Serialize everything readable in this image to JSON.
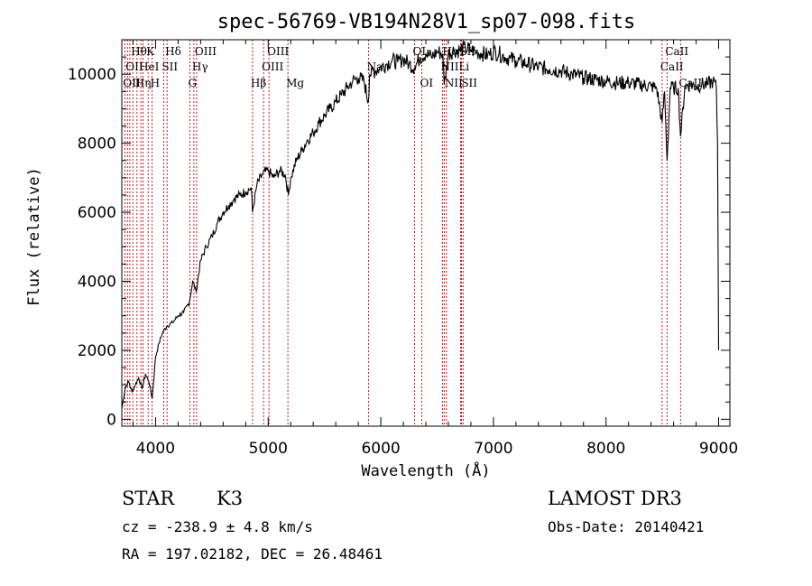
{
  "chart_data": {
    "type": "line",
    "title": "spec-56769-VB194N28V1_sp07-098.fits",
    "xlabel": "Wavelength (Å)",
    "ylabel": "Flux (relative)",
    "xlim": [
      3700,
      9100
    ],
    "ylim": [
      -200,
      11000
    ],
    "x_ticks": [
      4000,
      5000,
      6000,
      7000,
      8000,
      9000
    ],
    "y_ticks": [
      0,
      2000,
      4000,
      6000,
      8000,
      10000
    ],
    "x_tick_labels": [
      "4000",
      "5000",
      "6000",
      "7000",
      "8000",
      "9000"
    ],
    "y_tick_labels": [
      "0",
      "2000",
      "4000",
      "6000",
      "8000",
      "10000"
    ],
    "line_color": "#000000",
    "marker_color": "#c00000",
    "series": [
      {
        "x": [
          3700,
          3730,
          3760,
          3790,
          3820,
          3850,
          3880,
          3910,
          3940,
          3970,
          4000,
          4030,
          4060,
          4100,
          4150,
          4200,
          4250,
          4300,
          4330,
          4360,
          4400,
          4450,
          4500,
          4550,
          4600,
          4650,
          4700,
          4750,
          4800,
          4850,
          4860,
          4900,
          4950,
          5000,
          5050,
          5100,
          5150,
          5180,
          5200,
          5250,
          5300,
          5350,
          5400,
          5450,
          5500,
          5550,
          5600,
          5650,
          5700,
          5750,
          5800,
          5850,
          5890,
          5900,
          5950,
          6000,
          6050,
          6100,
          6150,
          6200,
          6250,
          6300,
          6350,
          6400,
          6450,
          6500,
          6550,
          6563,
          6600,
          6650,
          6700,
          6750,
          6800,
          6850,
          6900,
          6950,
          7000,
          7050,
          7100,
          7150,
          7200,
          7300,
          7400,
          7500,
          7600,
          7700,
          7800,
          7900,
          8000,
          8100,
          8200,
          8300,
          8400,
          8450,
          8498,
          8520,
          8542,
          8570,
          8600,
          8640,
          8662,
          8700,
          8750,
          8800,
          8850,
          8900,
          8950,
          8980,
          8990,
          9000
        ],
        "y": [
          300,
          900,
          1100,
          800,
          1000,
          1200,
          900,
          1300,
          1100,
          600,
          1800,
          2200,
          2500,
          2700,
          2800,
          3000,
          3100,
          3400,
          4000,
          3700,
          4600,
          5000,
          5300,
          5700,
          6000,
          6200,
          6400,
          6500,
          6600,
          6700,
          6000,
          6800,
          7100,
          7200,
          7000,
          7200,
          7100,
          6500,
          7000,
          7500,
          7800,
          8100,
          8300,
          8600,
          8800,
          9000,
          9200,
          9400,
          9600,
          9800,
          9900,
          9800,
          9200,
          10000,
          10100,
          10200,
          10300,
          10400,
          10350,
          10450,
          10300,
          10200,
          10500,
          10600,
          10500,
          10650,
          10600,
          9700,
          10600,
          10700,
          10700,
          10750,
          10700,
          10650,
          10600,
          10550,
          10650,
          10600,
          10500,
          10450,
          10400,
          10300,
          10200,
          10150,
          10100,
          10000,
          9900,
          9850,
          9800,
          9750,
          9750,
          9700,
          9650,
          9600,
          8600,
          9500,
          7500,
          9600,
          9600,
          9600,
          8200,
          9650,
          9700,
          9650,
          9700,
          9700,
          9800,
          9600,
          8000,
          2000
        ]
      }
    ],
    "line_markers": [
      {
        "x": 3727,
        "labels": [
          "OII"
        ],
        "row": 2
      },
      {
        "x": 3750,
        "labels": [
          "OII"
        ],
        "row": 1
      },
      {
        "x": 3771,
        "labels": [],
        "row": 0
      },
      {
        "x": 3798,
        "labels": [
          "Hθ"
        ],
        "row": 0
      },
      {
        "x": 3835,
        "labels": [
          "Hη"
        ],
        "row": 2
      },
      {
        "x": 3869,
        "labels": [
          "HeI"
        ],
        "row": 1
      },
      {
        "x": 3889,
        "labels": [],
        "row": 0
      },
      {
        "x": 3934,
        "labels": [
          "K"
        ],
        "row": 0
      },
      {
        "x": 3969,
        "labels": [
          "H"
        ],
        "row": 2
      },
      {
        "x": 4072,
        "labels": [
          "SII"
        ],
        "row": 1
      },
      {
        "x": 4102,
        "labels": [
          "Hδ"
        ],
        "row": 0
      },
      {
        "x": 4305,
        "labels": [
          "G"
        ],
        "row": 2
      },
      {
        "x": 4340,
        "labels": [
          "Hγ"
        ],
        "row": 1
      },
      {
        "x": 4364,
        "labels": [
          "OIII"
        ],
        "row": 0
      },
      {
        "x": 4861,
        "labels": [
          "Hβ"
        ],
        "row": 2
      },
      {
        "x": 4959,
        "labels": [
          "OIII"
        ],
        "row": 1
      },
      {
        "x": 5007,
        "labels": [
          "OIII"
        ],
        "row": 0
      },
      {
        "x": 5175,
        "labels": [
          "Mg"
        ],
        "row": 2
      },
      {
        "x": 5892,
        "labels": [
          "Na"
        ],
        "row": 1
      },
      {
        "x": 6300,
        "labels": [
          "OI"
        ],
        "row": 0
      },
      {
        "x": 6364,
        "labels": [
          "OI"
        ],
        "row": 2
      },
      {
        "x": 6548,
        "labels": [
          "NII"
        ],
        "row": 1
      },
      {
        "x": 6563,
        "labels": [
          "Hα"
        ],
        "row": 0
      },
      {
        "x": 6583,
        "labels": [
          "NII"
        ],
        "row": 2
      },
      {
        "x": 6708,
        "labels": [
          "Li"
        ],
        "row": 1
      },
      {
        "x": 6716,
        "labels": [
          "SII"
        ],
        "row": 0
      },
      {
        "x": 6731,
        "labels": [
          "SII"
        ],
        "row": 2
      },
      {
        "x": 8498,
        "labels": [
          "CaII"
        ],
        "row": 1
      },
      {
        "x": 8542,
        "labels": [
          "CaII"
        ],
        "row": 0
      },
      {
        "x": 8662,
        "labels": [
          "CaII"
        ],
        "row": 2
      }
    ]
  },
  "footer": {
    "object_class": "STAR",
    "subclass": "K3",
    "survey": "LAMOST DR3",
    "redshift": "cz = -238.9 ± 4.8 km/s",
    "obs_date": "Obs-Date: 20140421",
    "coords": "RA = 197.02182, DEC =  26.48461"
  }
}
